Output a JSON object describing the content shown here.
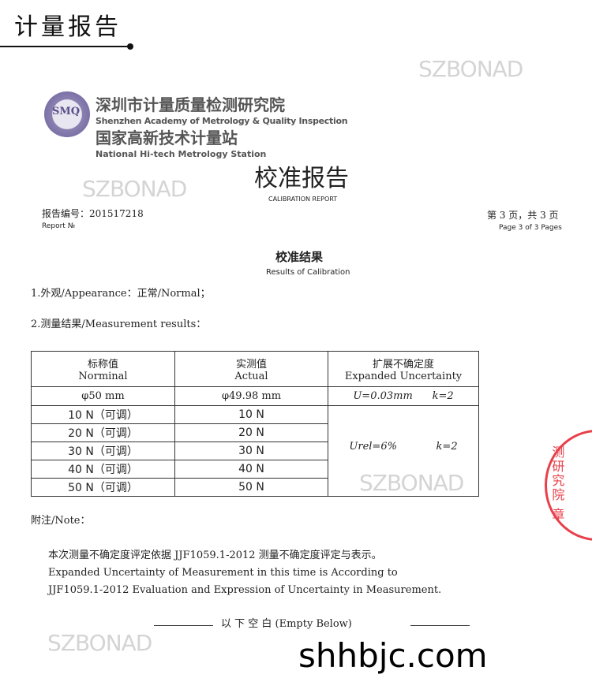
{
  "banner": {
    "title": "计量报告"
  },
  "watermark": "SZBONAD",
  "org": {
    "logo": "SMQ",
    "name_cn": "深圳市计量质量检测研究院",
    "name_en": "Shenzhen Academy of Metrology & Quality Inspection",
    "station_cn": "国家高新技术计量站",
    "station_en": "National Hi-tech Metrology Station"
  },
  "report": {
    "title_cn": "校准报告",
    "title_en": "CALIBRATION REPORT",
    "no_label_cn": "报告编号：201517218",
    "no_label_en": "Report №",
    "page_cn": "第 3 页，共 3 页",
    "page_en": "Page 3 of 3 Pages"
  },
  "section": {
    "title_cn": "校准结果",
    "title_en": "Results of Calibration"
  },
  "items": {
    "appearance": "1.外观/Appearance：正常/Normal；",
    "measurement": "2.测量结果/Measurement results："
  },
  "table": {
    "headers": [
      {
        "cn": "标称值",
        "en": "Norminal"
      },
      {
        "cn": "实测值",
        "en": "Actual"
      },
      {
        "cn": "扩展不确定度",
        "en": "Expanded Uncertainty"
      }
    ],
    "diameter": {
      "nominal": "φ50 mm",
      "actual": "φ49.98 mm",
      "u": "U=0.03mm",
      "k": "k=2"
    },
    "rows": [
      {
        "nominal": "10 N（可调）",
        "actual": "10 N"
      },
      {
        "nominal": "20 N（可调）",
        "actual": "20 N"
      },
      {
        "nominal": "30 N（可调）",
        "actual": "30 N"
      },
      {
        "nominal": "40 N（可调）",
        "actual": "40 N"
      },
      {
        "nominal": "50 N（可调）",
        "actual": "50 N"
      }
    ],
    "force_u": "Urel=6%",
    "force_k": "k=2"
  },
  "note": {
    "label": "附注/Note：",
    "line1": "本次测量不确定度评定依据 JJF1059.1-2012 测量不确定度评定与表示。",
    "line2": "Expanded Uncertainty of Measurement in this time is  According to",
    "line3": "JJF1059.1-2012 Evaluation and Expression of Uncertainty in Measurement."
  },
  "empty_below": "以  下  空  白 (Empty Below)",
  "stamp": "测研究院 章",
  "site": "shhbjc.com",
  "colors": {
    "stamp": "#e8404a",
    "logo": "#6a5f9a"
  }
}
